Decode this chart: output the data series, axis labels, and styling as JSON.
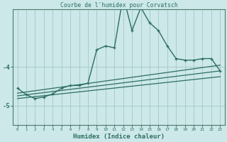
{
  "title": "Courbe de l'humidex pour Corvatsch",
  "xlabel": "Humidex (Indice chaleur)",
  "background_color": "#cce8e8",
  "grid_color": "#aacccc",
  "line_color": "#2d6e63",
  "x_values": [
    0,
    1,
    2,
    3,
    4,
    5,
    6,
    7,
    8,
    9,
    10,
    11,
    12,
    13,
    14,
    15,
    16,
    17,
    18,
    19,
    20,
    21,
    22,
    23
  ],
  "main_line": [
    -4.55,
    -4.72,
    -4.82,
    -4.78,
    -4.7,
    -4.55,
    -4.48,
    -4.48,
    -4.42,
    -3.55,
    -3.45,
    -3.5,
    -2.15,
    -3.05,
    -2.45,
    -2.85,
    -3.05,
    -3.45,
    -3.78,
    -3.82,
    -3.82,
    -3.78,
    -3.78,
    -4.1
  ],
  "trend1": [
    -4.82,
    -4.25
  ],
  "trend2": [
    -4.75,
    -4.1
  ],
  "trend3": [
    -4.68,
    -3.95
  ],
  "ylim": [
    -5.5,
    -2.5
  ],
  "xlim": [
    -0.5,
    23.5
  ],
  "yticks": [
    -5,
    -4
  ],
  "ytick_labels": [
    "-5",
    "-4"
  ]
}
